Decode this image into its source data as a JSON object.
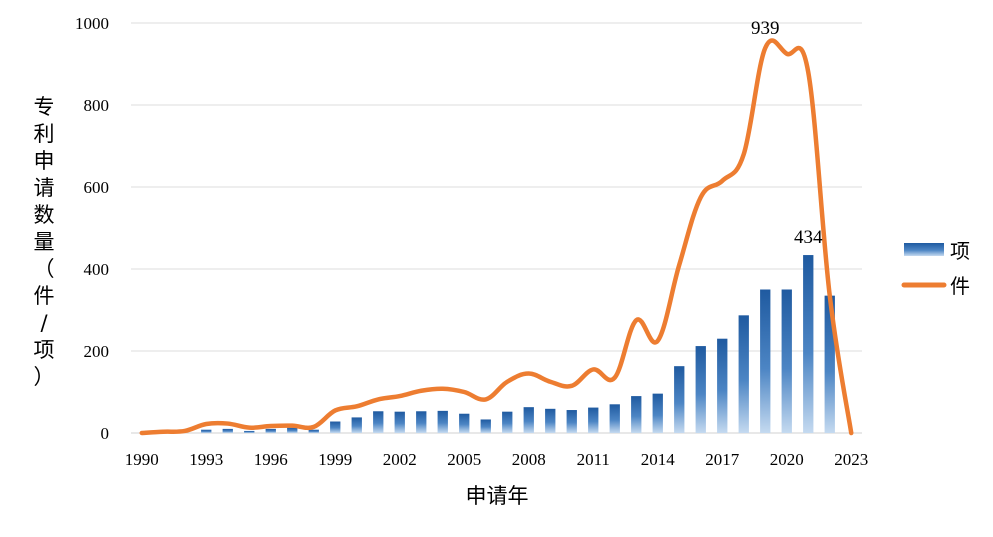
{
  "chart_data": {
    "type": "bar",
    "title": "",
    "xlabel": "申请年",
    "ylabel": "专利申请数量（件/项）",
    "ylim": [
      0,
      1000
    ],
    "yticks": [
      "0",
      "200",
      "400",
      "600",
      "800",
      "1000"
    ],
    "xtick_labels": [
      "1990",
      "1993",
      "1996",
      "1999",
      "2002",
      "2005",
      "2008",
      "2011",
      "2014",
      "2017",
      "2020",
      "2023"
    ],
    "categories": [
      "1990",
      "1991",
      "1992",
      "1993",
      "1994",
      "1995",
      "1996",
      "1997",
      "1998",
      "1999",
      "2000",
      "2001",
      "2002",
      "2003",
      "2004",
      "2005",
      "2006",
      "2007",
      "2008",
      "2009",
      "2010",
      "2011",
      "2012",
      "2013",
      "2014",
      "2015",
      "2016",
      "2017",
      "2018",
      "2019",
      "2020",
      "2021",
      "2022",
      "2023"
    ],
    "series": [
      {
        "name": "项",
        "kind": "bar",
        "color": "#2a64a8",
        "values": [
          0,
          0,
          0,
          8,
          10,
          5,
          10,
          13,
          8,
          28,
          38,
          53,
          52,
          53,
          54,
          47,
          33,
          52,
          63,
          59,
          56,
          62,
          70,
          90,
          96,
          163,
          212,
          230,
          287,
          350,
          350,
          434,
          335,
          0
        ]
      },
      {
        "name": "件",
        "kind": "line",
        "color": "#ed7d31",
        "values": [
          0,
          3,
          5,
          22,
          23,
          13,
          17,
          18,
          15,
          55,
          65,
          82,
          90,
          103,
          108,
          100,
          82,
          125,
          145,
          125,
          115,
          155,
          135,
          275,
          225,
          410,
          575,
          615,
          680,
          939,
          925,
          880,
          335,
          0
        ]
      }
    ],
    "annotations": [
      {
        "series": "件",
        "category": "2019",
        "label": "939"
      },
      {
        "series": "项",
        "category": "2021",
        "label": "434"
      }
    ],
    "legend": {
      "position": "right",
      "items": [
        "项",
        "件"
      ]
    },
    "grid": true
  }
}
